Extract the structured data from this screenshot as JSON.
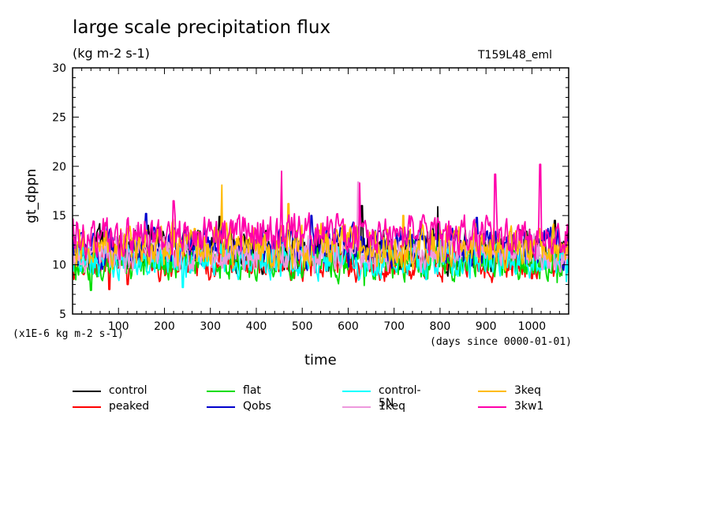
{
  "chart_data": {
    "type": "line",
    "title": "large scale precipitation flux",
    "units": "(kg m-2 s-1)",
    "run_label": "T159L48_eml",
    "xlabel": "time",
    "ylabel": "gt_dppn",
    "scale_note": "(x1E-6 kg m-2 s-1)",
    "x_axis_note": "(days since 0000-01-01)",
    "xlim": [
      0,
      1080
    ],
    "ylim": [
      5,
      30
    ],
    "x_ticks": [
      100,
      200,
      300,
      400,
      500,
      600,
      700,
      800,
      900,
      1000
    ],
    "y_ticks": [
      5,
      10,
      15,
      20,
      25,
      30
    ],
    "grid": false,
    "legend_position": "bottom",
    "series": [
      {
        "name": "control",
        "color": "#000000",
        "mean": 11.6,
        "spread": 1.6,
        "peaks": [
          [
            320,
            14.9
          ],
          [
            630,
            16.0
          ],
          [
            795,
            15.9
          ],
          [
            1050,
            14.5
          ]
        ]
      },
      {
        "name": "peaked",
        "color": "#ff0000",
        "mean": 10.2,
        "spread": 1.3,
        "peaks": [
          [
            80,
            7.5
          ],
          [
            120,
            8.0
          ],
          [
            1000,
            8.6
          ]
        ]
      },
      {
        "name": "flat",
        "color": "#00dd00",
        "mean": 10.3,
        "spread": 1.3,
        "peaks": [
          [
            40,
            7.4
          ],
          [
            635,
            7.9
          ],
          [
            1055,
            8.2
          ]
        ]
      },
      {
        "name": "Qobs",
        "color": "#0000cc",
        "mean": 11.8,
        "spread": 1.5,
        "peaks": [
          [
            160,
            15.2
          ],
          [
            520,
            15.0
          ],
          [
            880,
            14.8
          ]
        ]
      },
      {
        "name": "control-5N",
        "color": "#00ffff",
        "mean": 10.4,
        "spread": 1.3,
        "peaks": [
          [
            240,
            7.7
          ],
          [
            770,
            8.5
          ],
          [
            1075,
            8.3
          ]
        ]
      },
      {
        "name": "1keq",
        "color": "#ee99dd",
        "mean": 11.3,
        "spread": 1.4,
        "peaks": [
          [
            622,
            18.4
          ],
          [
            140,
            14.0
          ]
        ]
      },
      {
        "name": "3keq",
        "color": "#ffbb00",
        "mean": 11.9,
        "spread": 1.6,
        "peaks": [
          [
            325,
            18.1
          ],
          [
            470,
            16.2
          ],
          [
            720,
            15.0
          ]
        ]
      },
      {
        "name": "3kw1",
        "color": "#ff00aa",
        "mean": 13.1,
        "spread": 1.5,
        "peaks": [
          [
            455,
            19.5
          ],
          [
            625,
            18.3
          ],
          [
            920,
            19.2
          ],
          [
            1018,
            20.2
          ],
          [
            220,
            16.5
          ]
        ]
      }
    ]
  }
}
